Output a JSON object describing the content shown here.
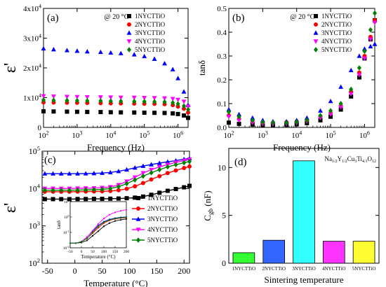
{
  "colors": {
    "s1": "#000000",
    "s2": "#ff0000",
    "s3": "#0000ff",
    "s4": "#ff00ff",
    "s5": "#008000"
  },
  "chart_data": [
    {
      "panel": "(a)",
      "type": "scatter",
      "annotation": "@ 20 °C",
      "xlabel": "Frequency (Hz)",
      "ylabel": "ε'",
      "x_scale": "log",
      "xlim": [
        100,
        2000000
      ],
      "ylim": [
        0,
        40000
      ],
      "x_ticks": [
        "10^2",
        "10^3",
        "10^4",
        "10^5",
        "10^6"
      ],
      "y_ticks": [
        "0",
        "1x10^4",
        "2x10^4",
        "3x10^4",
        "4x10^4"
      ],
      "legend": "top-right",
      "x": [
        100,
        200,
        500,
        1000,
        2000,
        5000,
        10000,
        20000,
        50000,
        100000,
        200000,
        400000,
        700000,
        1000000,
        1500000,
        2000000
      ],
      "series": [
        {
          "name": "1NYCTTiO",
          "marker": "square",
          "values": [
            5400,
            5350,
            5300,
            5250,
            5200,
            5150,
            5100,
            5050,
            5000,
            4950,
            4900,
            4850,
            4700,
            4500,
            4000,
            3200
          ]
        },
        {
          "name": "2NYCTTiO",
          "marker": "circle",
          "values": [
            8400,
            8350,
            8300,
            8250,
            8200,
            8150,
            8100,
            8050,
            8000,
            7950,
            7900,
            7800,
            7500,
            7000,
            6300,
            5000
          ]
        },
        {
          "name": "3NYCTTiO",
          "marker": "triangle-up",
          "values": [
            26500,
            26200,
            25900,
            25700,
            25500,
            25300,
            25100,
            24900,
            24500,
            23900,
            23000,
            21500,
            19500,
            16500,
            12000,
            7500
          ]
        },
        {
          "name": "4NYCTTiO",
          "marker": "triangle-down",
          "values": [
            10500,
            10400,
            10300,
            10250,
            10200,
            10150,
            10100,
            10050,
            10000,
            9950,
            9900,
            9800,
            9600,
            9300,
            8700,
            7000
          ]
        },
        {
          "name": "5NYCTTiO",
          "marker": "diamond",
          "values": [
            9200,
            9100,
            9050,
            9000,
            8950,
            8900,
            8850,
            8800,
            8750,
            8700,
            8650,
            8550,
            8300,
            7900,
            7200,
            6000
          ]
        }
      ]
    },
    {
      "panel": "(b)",
      "type": "scatter",
      "annotation": "@ 20 °C",
      "xlabel": "Frequency (Hz)",
      "ylabel": "tanδ",
      "x_scale": "log",
      "xlim": [
        100,
        2000000
      ],
      "ylim": [
        0,
        0.5
      ],
      "x_ticks": [
        "10^2",
        "10^3",
        "10^4",
        "10^5",
        "10^6"
      ],
      "y_ticks": [
        "0.0",
        "0.1",
        "0.2",
        "0.3",
        "0.4",
        "0.5"
      ],
      "legend": "top-right",
      "x": [
        100,
        200,
        500,
        1000,
        2000,
        5000,
        10000,
        20000,
        50000,
        100000,
        200000,
        400000,
        700000,
        1000000,
        1500000,
        2000000
      ],
      "series": [
        {
          "name": "1NYCTTiO",
          "marker": "square",
          "values": [
            0.02,
            0.015,
            0.012,
            0.01,
            0.01,
            0.011,
            0.013,
            0.018,
            0.03,
            0.045,
            0.075,
            0.13,
            0.21,
            0.29,
            0.37,
            0.45
          ]
        },
        {
          "name": "2NYCTTiO",
          "marker": "circle",
          "values": [
            0.05,
            0.035,
            0.025,
            0.02,
            0.02,
            0.022,
            0.025,
            0.03,
            0.045,
            0.06,
            0.09,
            0.15,
            0.23,
            0.3,
            0.38,
            0.45
          ]
        },
        {
          "name": "3NYCTTiO",
          "marker": "triangle-up",
          "values": [
            0.075,
            0.055,
            0.04,
            0.03,
            0.025,
            0.025,
            0.03,
            0.04,
            0.07,
            0.11,
            0.17,
            0.24,
            0.3,
            0.33,
            0.34,
            0.35
          ]
        },
        {
          "name": "4NYCTTiO",
          "marker": "triangle-down",
          "values": [
            0.045,
            0.03,
            0.02,
            0.015,
            0.014,
            0.015,
            0.018,
            0.025,
            0.04,
            0.055,
            0.085,
            0.14,
            0.22,
            0.29,
            0.37,
            0.44
          ]
        },
        {
          "name": "5NYCTTiO",
          "marker": "diamond",
          "values": [
            0.065,
            0.045,
            0.03,
            0.022,
            0.02,
            0.02,
            0.023,
            0.03,
            0.05,
            0.07,
            0.1,
            0.16,
            0.25,
            0.32,
            0.41,
            0.48
          ]
        }
      ]
    },
    {
      "panel": "(c)",
      "type": "scatter",
      "xlabel": "Temperature (°C)",
      "ylabel": "ε'",
      "y_scale": "log",
      "xlim": [
        -60,
        210
      ],
      "ylim": [
        100,
        100000
      ],
      "x_ticks": [
        "-50",
        "0",
        "50",
        "100",
        "150",
        "200"
      ],
      "y_ticks": [
        "10^2",
        "10^3",
        "10^4",
        "10^5"
      ],
      "legend": "bottom-right",
      "x": [
        -55,
        -40,
        -25,
        -10,
        5,
        20,
        35,
        50,
        65,
        80,
        95,
        110,
        125,
        140,
        155,
        170,
        185,
        200,
        210
      ],
      "series": [
        {
          "name": "1NYCTTiO",
          "marker": "square",
          "values": [
            5200,
            5200,
            5200,
            5200,
            5250,
            5250,
            5300,
            5300,
            5350,
            5400,
            5500,
            5700,
            6100,
            6800,
            7700,
            8700,
            9700,
            10800,
            11800
          ]
        },
        {
          "name": "2NYCTTiO",
          "marker": "circle",
          "values": [
            8200,
            8200,
            8200,
            8200,
            8250,
            8300,
            8350,
            8400,
            8600,
            9000,
            9800,
            11500,
            14000,
            17500,
            21500,
            26000,
            30500,
            35500,
            39000
          ]
        },
        {
          "name": "3NYCTTiO",
          "marker": "triangle-up",
          "values": [
            25000,
            25000,
            25000,
            25000,
            25000,
            25200,
            25500,
            26000,
            27000,
            29000,
            32000,
            36000,
            40000,
            44000,
            48000,
            52000,
            56000,
            61000,
            64000
          ]
        },
        {
          "name": "4NYCTTiO",
          "marker": "triangle-down",
          "values": [
            10000,
            10000,
            10000,
            10000,
            10100,
            10200,
            10300,
            10500,
            11000,
            12500,
            15500,
            20000,
            26000,
            32000,
            38000,
            44000,
            50000,
            56000,
            60000
          ]
        },
        {
          "name": "5NYCTTiO",
          "marker": "diamond",
          "values": [
            9000,
            9000,
            9000,
            9000,
            9100,
            9200,
            9300,
            9500,
            10000,
            11200,
            13500,
            17000,
            21500,
            26500,
            32000,
            38000,
            43500,
            49000,
            53000
          ]
        }
      ],
      "inset": {
        "xlabel": "Temperature (°C)",
        "ylabel": "tanδ",
        "xlim": [
          -50,
          200
        ],
        "ylim_log": [
          0.01,
          10
        ],
        "x_ticks": [
          "-50",
          "0",
          "50",
          "100",
          "150",
          "200"
        ],
        "y_ticks": [
          "10^-2",
          "10^-1",
          "10^0",
          "10^1"
        ],
        "x": [
          -50,
          -25,
          0,
          25,
          50,
          75,
          100,
          125,
          150,
          175,
          200
        ],
        "series": [
          {
            "name": "1NYCTTiO",
            "values": [
              0.02,
              0.02,
              0.022,
              0.03,
              0.06,
              0.12,
              0.25,
              0.4,
              0.55,
              0.65,
              0.75
            ]
          },
          {
            "name": "2NYCTTiO",
            "values": [
              0.02,
              0.02,
              0.025,
              0.04,
              0.09,
              0.2,
              0.4,
              0.6,
              0.75,
              0.85,
              0.9
            ]
          },
          {
            "name": "3NYCTTiO",
            "values": [
              0.02,
              0.02,
              0.025,
              0.05,
              0.12,
              0.28,
              0.5,
              0.7,
              0.85,
              0.95,
              1.0
            ]
          },
          {
            "name": "4NYCTTiO",
            "values": [
              0.02,
              0.02,
              0.025,
              0.05,
              0.13,
              0.35,
              0.8,
              1.4,
              2.0,
              2.5,
              3.0
            ]
          },
          {
            "name": "5NYCTTiO",
            "values": [
              0.02,
              0.02,
              0.025,
              0.04,
              0.1,
              0.25,
              0.45,
              0.65,
              0.8,
              0.9,
              0.95
            ]
          }
        ]
      }
    },
    {
      "panel": "(d)",
      "type": "bar",
      "formula": "Na1/2Y1/2Cu3Ti4.1O12",
      "xlabel": "Sintering temperature",
      "ylabel": "Cgb (nF)",
      "ylim": [
        0,
        12
      ],
      "y_ticks": [
        "0",
        "5",
        "10"
      ],
      "categories": [
        "1NYCTTiO",
        "2NYCTTiO",
        "3NYCTTiO",
        "4NYCTTiO",
        "5NYCTTiO"
      ],
      "values": [
        1.1,
        2.4,
        10.7,
        2.3,
        2.3
      ],
      "bar_colors": [
        "#33ff33",
        "#3366ff",
        "#33ffff",
        "#ff33ff",
        "#ffff33"
      ]
    }
  ]
}
